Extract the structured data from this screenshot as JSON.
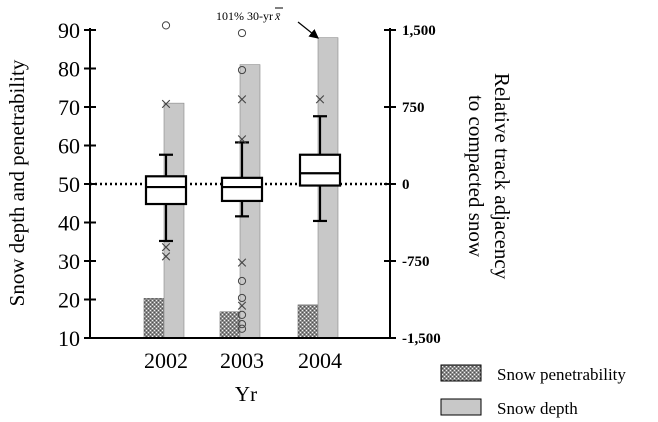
{
  "chart_data": {
    "type": "bar",
    "categories": [
      "2002",
      "2003",
      "2004"
    ],
    "xlabel": "Yr",
    "ylabel": "Snow depth and penetrability",
    "ylim": [
      10,
      90
    ],
    "yticks": [
      "10",
      "20",
      "30",
      "40",
      "50",
      "60",
      "70",
      "80",
      "90"
    ],
    "y2label_lines": [
      "Relative track adjacency",
      "to compacted snow"
    ],
    "y2lim": [
      -1500,
      1500
    ],
    "y2ticks": [
      "-1,500",
      "-750",
      "0",
      "750",
      "1,500"
    ],
    "y2_values": [
      -1500,
      -750,
      0,
      750,
      1500
    ],
    "reference_line_y2": 0,
    "annotation": {
      "text": "101%  30-yr",
      "symbol": "x̄",
      "target_category": "2004"
    },
    "series": [
      {
        "name": "Snow penetrability",
        "axis": "left",
        "values": [
          20.3,
          16.8,
          18.6
        ],
        "color": "#9e9e9e",
        "pattern": "stipple"
      },
      {
        "name": "Snow depth",
        "axis": "left",
        "values": [
          71,
          81,
          88
        ],
        "color": "#c8c8c8",
        "pattern": "solid"
      }
    ],
    "boxplots": {
      "axis": "right",
      "stats": [
        {
          "category": "2002",
          "whisker_low": -555,
          "q1": -195,
          "median": -30,
          "q3": 75,
          "whisker_high": 285
        },
        {
          "category": "2003",
          "whisker_low": -315,
          "q1": -165,
          "median": -30,
          "q3": 60,
          "whisker_high": 405
        },
        {
          "category": "2004",
          "whisker_low": -360,
          "q1": -15,
          "median": 105,
          "q3": 285,
          "whisker_high": 660
        }
      ],
      "outliers_circle": [
        {
          "category": "2002",
          "values": [
            1545
          ]
        },
        {
          "category": "2003",
          "values": [
            1470,
            1110,
            -945,
            -1110,
            -1275,
            -1365,
            -1410
          ]
        }
      ],
      "outliers_x": [
        {
          "category": "2002",
          "values": [
            780,
            -615,
            -705
          ]
        },
        {
          "category": "2003",
          "values": [
            825,
            435,
            -765,
            -1185
          ]
        },
        {
          "category": "2004",
          "values": [
            825
          ]
        }
      ]
    }
  }
}
